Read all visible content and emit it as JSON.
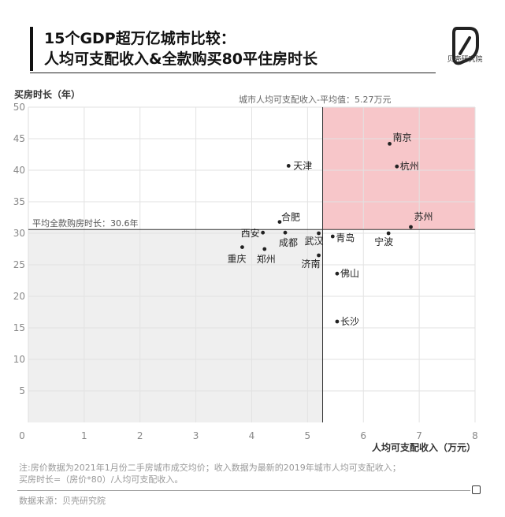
{
  "header": {
    "title_line1": "15个GDP超万亿城市比较：",
    "title_line2": "人均可支配收入&全款购买80平住房时长",
    "logo_label": "贝壳研究院"
  },
  "chart_data": {
    "type": "scatter",
    "title": "15个GDP超万亿城市比较：人均可支配收入&全款购买80平住房时长",
    "xlabel": "人均可支配收入（万元）",
    "ylabel": "买房时长（年）",
    "xlim": [
      0,
      8
    ],
    "ylim": [
      0,
      50
    ],
    "xticks": [
      0,
      1,
      2,
      3,
      4,
      5,
      6,
      7,
      8
    ],
    "yticks": [
      5,
      10,
      15,
      20,
      25,
      30,
      35,
      40,
      45,
      50
    ],
    "grid": true,
    "ref_lines": {
      "x": 5.27,
      "x_label": "城市人均可支配收入-平均值：5.27万元",
      "y": 30.6,
      "y_label": "平均全款购房时长：30.6年"
    },
    "highlight_quadrant": "top-right",
    "colors": {
      "highlight": "#f7c6c9",
      "lowlight": "#efefef",
      "point": "#222222"
    },
    "points": [
      {
        "name": "南京",
        "x": 6.47,
        "y": 44.2
      },
      {
        "name": "杭州",
        "x": 6.6,
        "y": 40.6
      },
      {
        "name": "天津",
        "x": 4.66,
        "y": 40.7
      },
      {
        "name": "苏州",
        "x": 6.85,
        "y": 31.0
      },
      {
        "name": "合肥",
        "x": 4.5,
        "y": 31.8
      },
      {
        "name": "西安",
        "x": 4.2,
        "y": 30.1
      },
      {
        "name": "成都",
        "x": 4.6,
        "y": 30.1
      },
      {
        "name": "武汉",
        "x": 5.2,
        "y": 30.0
      },
      {
        "name": "青岛",
        "x": 5.45,
        "y": 29.5
      },
      {
        "name": "宁波",
        "x": 6.45,
        "y": 30.0
      },
      {
        "name": "重庆",
        "x": 3.83,
        "y": 27.8
      },
      {
        "name": "郑州",
        "x": 4.23,
        "y": 27.5
      },
      {
        "name": "济南",
        "x": 5.2,
        "y": 26.5
      },
      {
        "name": "佛山",
        "x": 5.53,
        "y": 23.6
      },
      {
        "name": "长沙",
        "x": 5.53,
        "y": 16.0
      }
    ]
  },
  "notes": {
    "line1": "注:房价数据为2021年1月份二手房城市成交均价；收入数据为最新的2019年城市人均可支配收入；",
    "line2": "买房时长=（房价*80）/人均可支配收入。",
    "source": "数据来源：贝壳研究院"
  }
}
